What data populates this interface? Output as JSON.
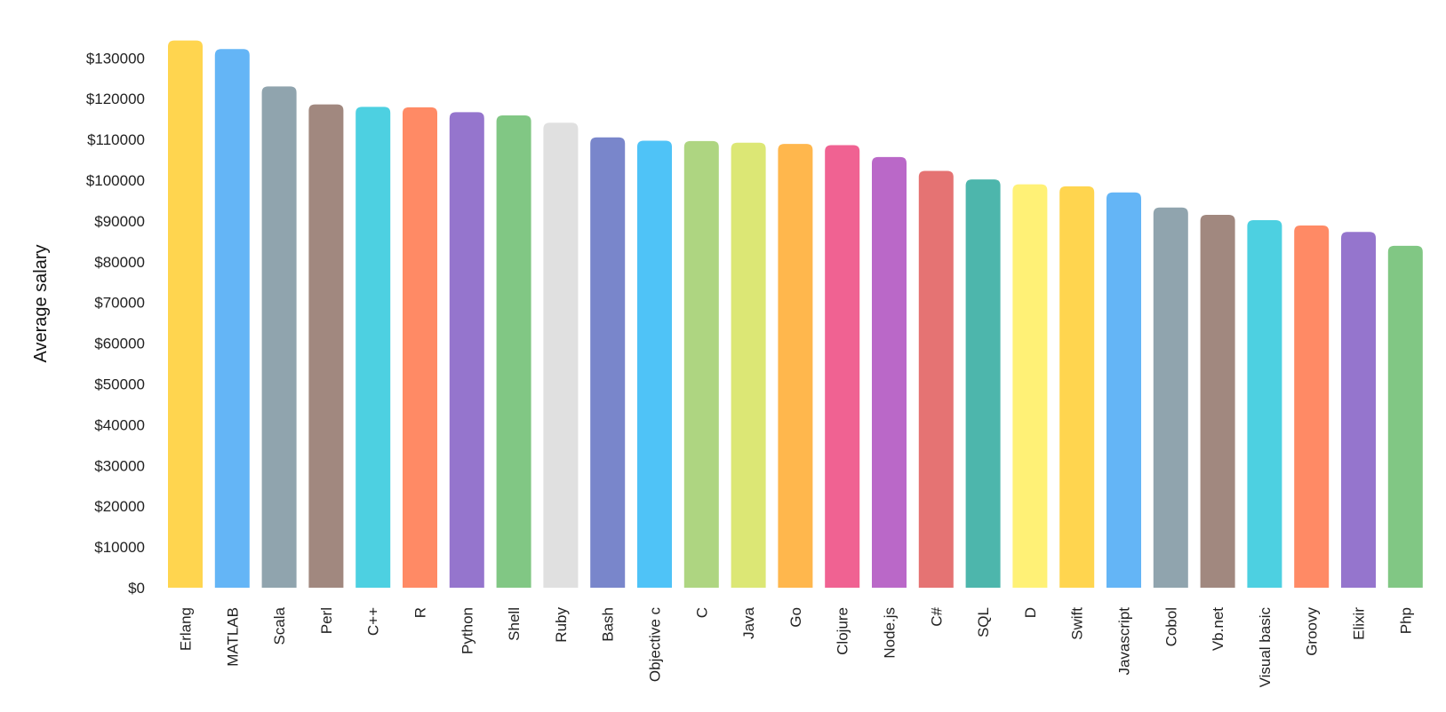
{
  "chart_data": {
    "type": "bar",
    "ylabel": "Average salary",
    "ylim": [
      0,
      135000
    ],
    "y_ticks": [
      "$0",
      "$10000",
      "$20000",
      "$30000",
      "$40000",
      "$50000",
      "$60000",
      "$70000",
      "$80000",
      "$90000",
      "$100000",
      "$110000",
      "$120000",
      "$130000"
    ],
    "y_tick_values": [
      0,
      10000,
      20000,
      30000,
      40000,
      50000,
      60000,
      70000,
      80000,
      90000,
      100000,
      110000,
      120000,
      130000
    ],
    "grid": false,
    "categories": [
      "Erlang",
      "MATLAB",
      "Scala",
      "Perl",
      "C++",
      "R",
      "Python",
      "Shell",
      "Ruby",
      "Bash",
      "Objective c",
      "C",
      "Java",
      "Go",
      "Clojure",
      "Node.js",
      "C#",
      "SQL",
      "D",
      "Swift",
      "Javascript",
      "Cobol",
      "Vb.net",
      "Visual basic",
      "Groovy",
      "Elixir",
      "Php"
    ],
    "values": [
      134300,
      132200,
      123000,
      118600,
      118000,
      117900,
      116700,
      115900,
      114100,
      110500,
      109700,
      109600,
      109200,
      108900,
      108600,
      105700,
      102300,
      100200,
      99000,
      98500,
      97000,
      93300,
      91500,
      90200,
      88900,
      87300,
      83900
    ],
    "colors": [
      "#ffd54f",
      "#64b5f6",
      "#90a4ae",
      "#a1887f",
      "#4dd0e1",
      "#ff8a65",
      "#9575cd",
      "#81c784",
      "#e0e0e0",
      "#7986cb",
      "#4fc3f7",
      "#aed581",
      "#dce775",
      "#ffb74d",
      "#f06292",
      "#ba68c8",
      "#e57373",
      "#4db6ac",
      "#fff176",
      "#ffd54f",
      "#64b5f6",
      "#90a4ae",
      "#a1887f",
      "#4dd0e1",
      "#ff8a65",
      "#9575cd",
      "#81c784"
    ]
  }
}
